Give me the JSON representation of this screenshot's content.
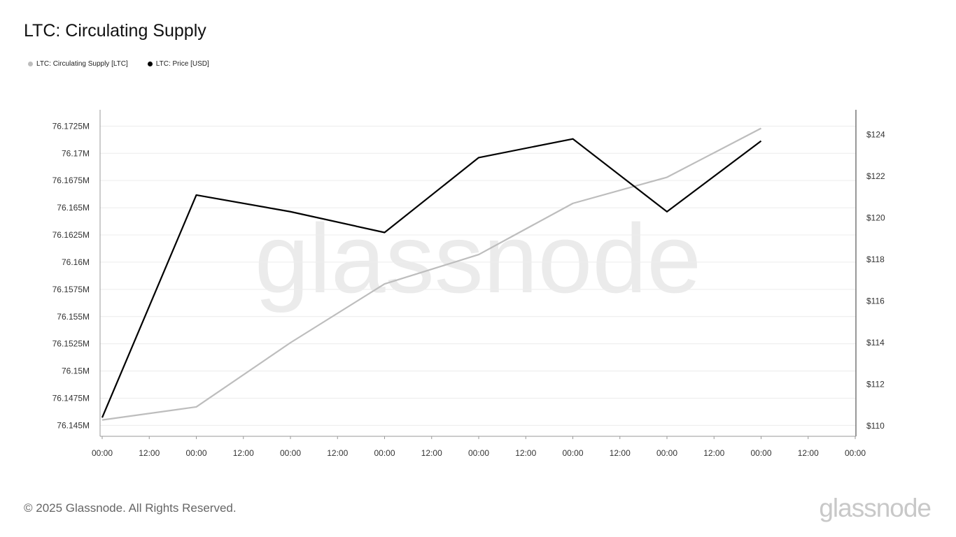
{
  "title": "LTC: Circulating Supply",
  "footer": {
    "copyright": "© 2025 Glassnode. All Rights Reserved.",
    "brand": "glassnode"
  },
  "watermark": "glassnode",
  "colors": {
    "supply": "#bdbdbd",
    "price": "#000000",
    "grid": "#ececec",
    "axis": "#333333",
    "watermark": "#ebebeb"
  },
  "chart_data": {
    "type": "line",
    "legend_placement": "top-left",
    "grid": true,
    "x_ticks": [
      "00:00",
      "12:00",
      "00:00",
      "12:00",
      "00:00",
      "12:00",
      "00:00",
      "12:00",
      "00:00",
      "12:00",
      "00:00",
      "12:00",
      "00:00",
      "12:00",
      "00:00",
      "12:00",
      "00:00"
    ],
    "x_range": [
      0,
      16
    ],
    "y_left": {
      "ticks": [
        76.145,
        76.1475,
        76.15,
        76.1525,
        76.155,
        76.1575,
        76.16,
        76.1625,
        76.165,
        76.1675,
        76.17,
        76.1725
      ],
      "tick_labels": [
        "76.145M",
        "76.1475M",
        "76.15M",
        "76.1525M",
        "76.155M",
        "76.1575M",
        "76.16M",
        "76.1625M",
        "76.165M",
        "76.1675M",
        "76.17M",
        "76.1725M"
      ],
      "range": [
        76.144,
        76.174
      ]
    },
    "y_right": {
      "ticks": [
        110,
        112,
        114,
        116,
        118,
        120,
        122,
        124
      ],
      "tick_labels": [
        "$110",
        "$112",
        "$114",
        "$116",
        "$118",
        "$120",
        "$122",
        "$124"
      ],
      "range": [
        109.5,
        125.2
      ]
    },
    "series": [
      {
        "name": "LTC: Circulating Supply [LTC]",
        "axis": "left",
        "x": [
          0,
          2,
          4,
          6,
          8,
          10,
          12,
          14
        ],
        "values": [
          76.1455,
          76.1467,
          76.1526,
          76.158,
          76.1607,
          76.1654,
          76.1678,
          76.1723
        ]
      },
      {
        "name": "LTC: Price [USD]",
        "axis": "right",
        "x": [
          0,
          2,
          4,
          6,
          8,
          10,
          12,
          14
        ],
        "values": [
          110.4,
          121.1,
          120.3,
          119.3,
          122.9,
          123.8,
          120.3,
          123.7
        ]
      }
    ]
  }
}
